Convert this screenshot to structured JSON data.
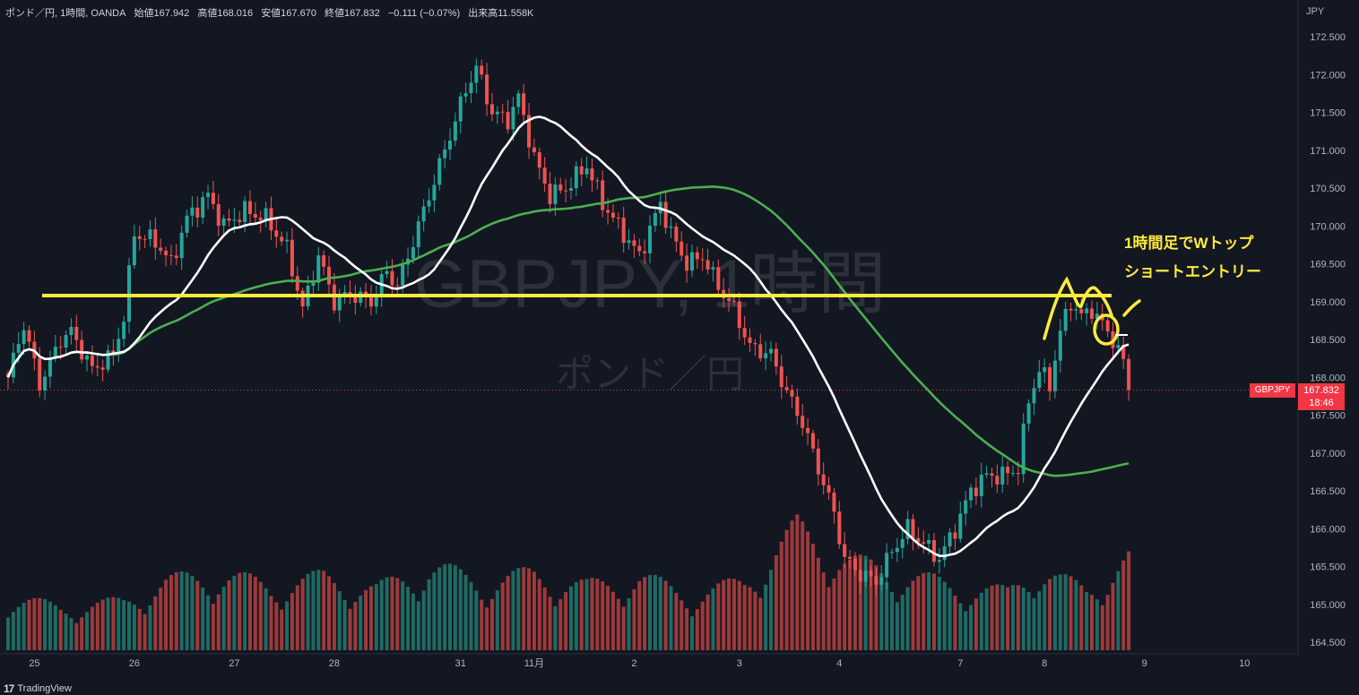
{
  "header": {
    "symbol_line": "ポンド／円, 1時間, OANDA",
    "open": "始値167.942",
    "high": "高値168.016",
    "low": "安値167.670",
    "close": "終値167.832",
    "change": "−0.111 (−0.07%)",
    "volume": "出来高11.558K"
  },
  "currency_label": "JPY",
  "watermark": {
    "title": "GBPJPY, 1時間",
    "subtitle": "ポンド／円"
  },
  "price_tag": {
    "symbol": "GBPJPY",
    "price": "167.832",
    "countdown": "18:46"
  },
  "annotation": {
    "line1": "1時間足でWトップ",
    "line2": "ショートエントリー"
  },
  "footer": {
    "brand": "TradingView"
  },
  "colors": {
    "background": "#131722",
    "up": "#26a69a",
    "down": "#ef5350",
    "ma_fast": "#ffffff",
    "ma_slow": "#4caf50",
    "annotation": "#ffeb3b",
    "price_tag": "#f23645"
  },
  "chart_data": {
    "type": "candlestick",
    "ylim": [
      164.3,
      172.7
    ],
    "y_ticks": [
      "172.500",
      "172.000",
      "171.500",
      "171.000",
      "170.500",
      "170.000",
      "169.500",
      "169.000",
      "168.500",
      "168.000",
      "167.500",
      "167.000",
      "166.500",
      "166.000",
      "165.500",
      "165.000",
      "164.500"
    ],
    "x_ticks": [
      "25",
      "26",
      "27",
      "28",
      "31",
      "11月",
      "2",
      "3",
      "4",
      "7",
      "8",
      "9",
      "10"
    ],
    "x_tick_index": [
      5,
      24,
      43,
      62,
      86,
      100,
      119,
      139,
      158,
      181,
      197,
      216,
      235
    ],
    "horizontal_line": 169.08,
    "last_price": 167.832,
    "anchors": [
      [
        0,
        168.0
      ],
      [
        3,
        168.7
      ],
      [
        6,
        167.9
      ],
      [
        10,
        168.5
      ],
      [
        12,
        168.6
      ],
      [
        16,
        168.1
      ],
      [
        20,
        168.3
      ],
      [
        22,
        168.8
      ],
      [
        24,
        169.9
      ],
      [
        28,
        169.8
      ],
      [
        31,
        169.5
      ],
      [
        34,
        170.1
      ],
      [
        38,
        170.4
      ],
      [
        41,
        170.0
      ],
      [
        45,
        170.2
      ],
      [
        49,
        170.1
      ],
      [
        53,
        169.7
      ],
      [
        56,
        168.9
      ],
      [
        59,
        169.6
      ],
      [
        62,
        169.0
      ],
      [
        65,
        169.1
      ],
      [
        69,
        169.0
      ],
      [
        72,
        169.4
      ],
      [
        74,
        169.2
      ],
      [
        78,
        170.0
      ],
      [
        81,
        170.6
      ],
      [
        84,
        171.2
      ],
      [
        87,
        171.8
      ],
      [
        89,
        172.1
      ],
      [
        92,
        171.5
      ],
      [
        95,
        171.4
      ],
      [
        97,
        171.7
      ],
      [
        100,
        170.9
      ],
      [
        103,
        170.4
      ],
      [
        106,
        170.5
      ],
      [
        110,
        170.8
      ],
      [
        113,
        170.3
      ],
      [
        117,
        169.9
      ],
      [
        120,
        169.6
      ],
      [
        124,
        170.3
      ],
      [
        126,
        169.9
      ],
      [
        129,
        169.5
      ],
      [
        132,
        169.6
      ],
      [
        135,
        169.2
      ],
      [
        138,
        168.9
      ],
      [
        141,
        168.4
      ],
      [
        145,
        168.3
      ],
      [
        148,
        167.8
      ],
      [
        151,
        167.4
      ],
      [
        154,
        166.8
      ],
      [
        157,
        166.2
      ],
      [
        159,
        165.6
      ],
      [
        162,
        165.4
      ],
      [
        165,
        165.3
      ],
      [
        168,
        165.7
      ],
      [
        171,
        166.0
      ],
      [
        174,
        165.8
      ],
      [
        177,
        165.6
      ],
      [
        180,
        166.0
      ],
      [
        183,
        166.5
      ],
      [
        186,
        166.7
      ],
      [
        189,
        166.7
      ],
      [
        192,
        166.8
      ],
      [
        194,
        167.7
      ],
      [
        196,
        168.1
      ],
      [
        198,
        167.9
      ],
      [
        200,
        168.6
      ],
      [
        202,
        169.0
      ],
      [
        204,
        168.8
      ],
      [
        206,
        168.9
      ],
      [
        208,
        168.7
      ],
      [
        210,
        168.5
      ],
      [
        212,
        168.2
      ],
      [
        213,
        167.83
      ]
    ],
    "volume_anchors": [
      [
        0,
        0.35
      ],
      [
        10,
        0.28
      ],
      [
        22,
        0.32
      ],
      [
        30,
        0.45
      ],
      [
        40,
        0.5
      ],
      [
        50,
        0.42
      ],
      [
        60,
        0.48
      ],
      [
        70,
        0.4
      ],
      [
        80,
        0.55
      ],
      [
        90,
        0.45
      ],
      [
        100,
        0.5
      ],
      [
        110,
        0.42
      ],
      [
        120,
        0.48
      ],
      [
        130,
        0.36
      ],
      [
        140,
        0.45
      ],
      [
        150,
        0.8
      ],
      [
        160,
        0.58
      ],
      [
        170,
        0.5
      ],
      [
        180,
        0.42
      ],
      [
        190,
        0.38
      ],
      [
        195,
        0.55
      ],
      [
        200,
        0.46
      ],
      [
        205,
        0.4
      ],
      [
        213,
        0.6
      ]
    ],
    "ma_fast": {
      "name": "",
      "period": 20
    },
    "ma_slow": {
      "name": "",
      "period": 60
    },
    "grid": false
  }
}
